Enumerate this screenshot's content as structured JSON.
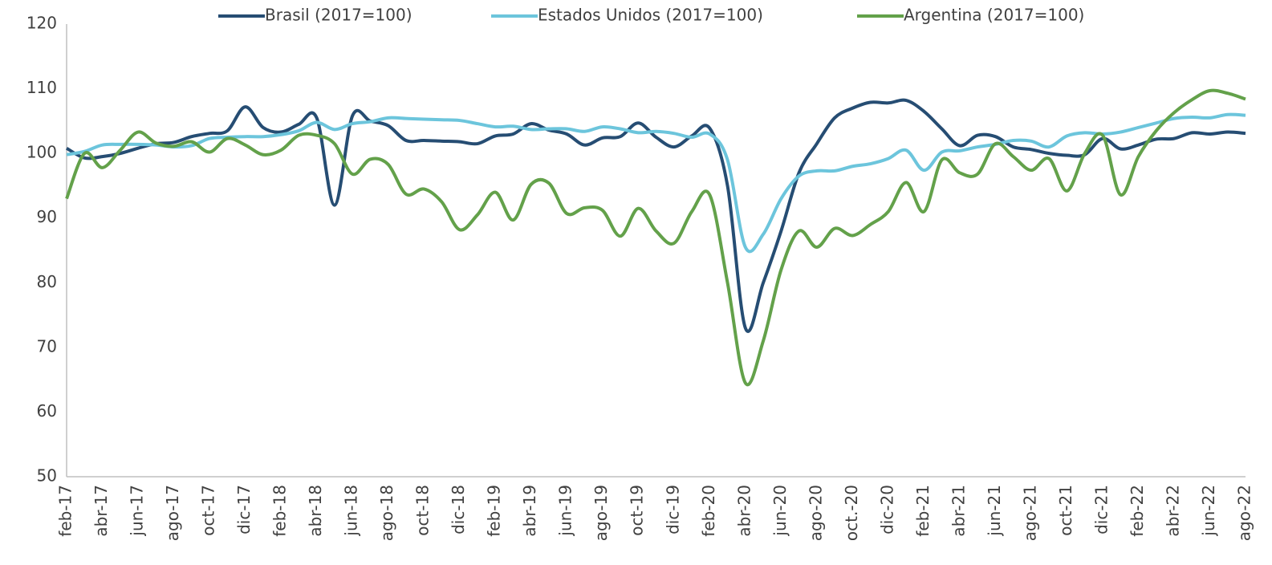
{
  "chart_data": {
    "type": "line",
    "categories": [
      "feb-17",
      null,
      "abr-17",
      null,
      "jun-17",
      null,
      "ago-17",
      null,
      "oct-17",
      null,
      "dic-17",
      null,
      "feb-18",
      null,
      "abr-18",
      null,
      "jun-18",
      null,
      "ago-18",
      null,
      "oct-18",
      null,
      "dic-18",
      null,
      "feb-19",
      null,
      "abr-19",
      null,
      "jun-19",
      null,
      "ago-19",
      null,
      "oct-19",
      null,
      "dic-19",
      null,
      "feb-20",
      null,
      "abr-20",
      null,
      "jun-20",
      null,
      "ago-20",
      null,
      "oct.-20",
      null,
      "dic-20",
      null,
      "feb-21",
      null,
      "abr-21",
      null,
      "jun-21",
      null,
      "ago-21",
      null,
      "oct-21",
      null,
      "dic-21",
      null,
      "feb-22",
      null,
      "abr-22",
      null,
      "jun-22",
      null,
      "ago-22"
    ],
    "series": [
      {
        "name": "Brasil (2017=100)",
        "color": "#264d73",
        "values": [
          100.8,
          99.3,
          99.5,
          100,
          100.8,
          101.5,
          101.7,
          102.6,
          103.1,
          103.5,
          107.2,
          104,
          103.3,
          104.5,
          105.5,
          92,
          105.8,
          105,
          104.3,
          102,
          102,
          101.9,
          101.8,
          101.5,
          102.7,
          103,
          104.6,
          103.6,
          103,
          101.3,
          102.4,
          102.6,
          104.7,
          102.5,
          101,
          102.7,
          103.9,
          95,
          73,
          80,
          88,
          97,
          101.5,
          105.5,
          107,
          107.9,
          107.8,
          108.2,
          106.5,
          103.8,
          101.2,
          102.8,
          102.6,
          101,
          100.6,
          100,
          99.7,
          99.8,
          102.3,
          100.7,
          101.3,
          102.2,
          102.3,
          103.2,
          103,
          103.3,
          103.1
        ]
      },
      {
        "name": "Estados Unidos (2017=100)",
        "color": "#6cc5dc",
        "values": [
          99.8,
          100.3,
          101.3,
          101.4,
          101.4,
          101.3,
          101,
          101.2,
          102.3,
          102.5,
          102.6,
          102.6,
          102.9,
          103.5,
          104.8,
          103.7,
          104.6,
          104.9,
          105.5,
          105.4,
          105.3,
          105.2,
          105.1,
          104.6,
          104.1,
          104.2,
          103.7,
          103.8,
          103.8,
          103.4,
          104.1,
          103.8,
          103.2,
          103.4,
          103.1,
          102.5,
          103,
          99,
          85.5,
          87.5,
          93,
          96.5,
          97.3,
          97.3,
          98,
          98.4,
          99.2,
          100.5,
          97.4,
          100.2,
          100.4,
          101,
          101.4,
          102,
          101.9,
          101,
          102.7,
          103.2,
          103,
          103.3,
          104,
          104.7,
          105.4,
          105.6,
          105.5,
          106,
          105.9
        ]
      },
      {
        "name": "Argentina (2017=100)",
        "color": "#63a14a",
        "values": [
          93,
          100,
          97.8,
          100.5,
          103.3,
          101.6,
          101.1,
          101.8,
          100.2,
          102.3,
          101.3,
          99.8,
          100.5,
          102.8,
          102.8,
          101.5,
          96.8,
          99.1,
          98.3,
          93.7,
          94.5,
          92.5,
          88.2,
          90.5,
          94,
          89.7,
          95.2,
          95.4,
          90.7,
          91.6,
          91.2,
          87.2,
          91.5,
          88,
          86.1,
          91,
          93.6,
          80,
          64.5,
          71,
          82,
          88,
          85.5,
          88.4,
          87.3,
          89,
          91,
          95.5,
          91,
          99,
          97,
          96.8,
          101.5,
          99.5,
          97.4,
          99.2,
          94.2,
          100,
          102.8,
          93.6,
          99.5,
          103.5,
          106.3,
          108.3,
          109.7,
          109.3,
          108.4
        ]
      }
    ],
    "ylim": [
      50,
      120
    ],
    "yticks": [
      50,
      60,
      70,
      80,
      90,
      100,
      110,
      120
    ],
    "grid": false,
    "legend": "top"
  }
}
